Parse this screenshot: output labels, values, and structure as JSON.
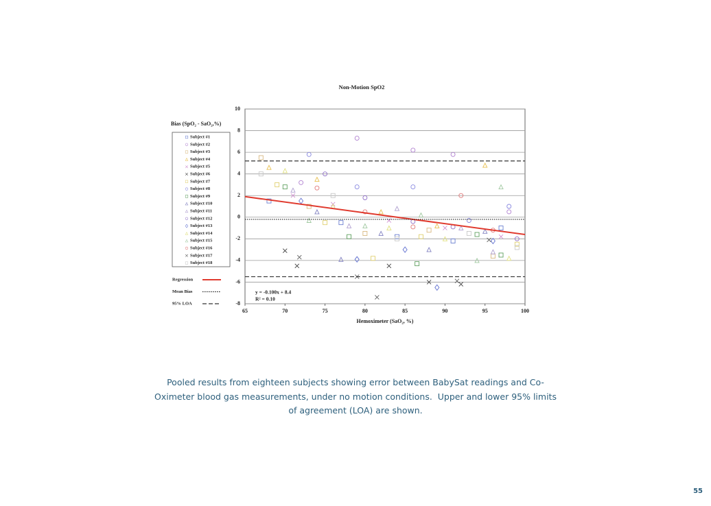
{
  "chart_data": {
    "type": "scatter",
    "title": "Non-Motion SpO2",
    "y_label": "Bias (SpO₂ - SaO₂,%)",
    "x_label": "Hemoximeter (SaO₂, %)",
    "xlim": [
      65,
      100
    ],
    "xticks": [
      65,
      70,
      75,
      80,
      85,
      90,
      95,
      100
    ],
    "ylim": [
      -8,
      10
    ],
    "yticks": [
      -8,
      -6,
      -4,
      -2,
      0,
      2,
      4,
      6,
      8,
      10
    ],
    "grid": true,
    "series": [
      {
        "name": "Subject #1",
        "color": "#6a7fd0",
        "marker": "square",
        "x": [
          68,
          77,
          84,
          91,
          97
        ],
        "y": [
          1.5,
          -0.5,
          -1.8,
          -2.2,
          -1.0
        ]
      },
      {
        "name": "Subject #2",
        "color": "#b080d0",
        "marker": "circle",
        "x": [
          72,
          79,
          86,
          91,
          98
        ],
        "y": [
          3.2,
          7.3,
          6.2,
          5.8,
          0.5
        ]
      },
      {
        "name": "Subject #3",
        "color": "#d8b880",
        "marker": "square",
        "x": [
          67,
          73,
          80,
          88,
          96
        ],
        "y": [
          5.5,
          1.0,
          -1.5,
          -1.2,
          -3.6
        ]
      },
      {
        "name": "Subject #4",
        "color": "#e8c050",
        "marker": "triangle",
        "x": [
          68,
          74,
          82,
          89,
          95
        ],
        "y": [
          4.6,
          3.5,
          0.5,
          -0.8,
          4.8
        ]
      },
      {
        "name": "Subject #5",
        "color": "#d090d0",
        "marker": "x",
        "x": [
          71,
          76,
          83,
          90,
          97
        ],
        "y": [
          2.0,
          1.2,
          -0.3,
          -1.0,
          -1.8
        ]
      },
      {
        "name": "Subject #6",
        "color": "#404040",
        "marker": "x",
        "x": [
          70,
          71.5,
          83,
          88,
          92
        ],
        "y": [
          -3.1,
          -4.5,
          -4.5,
          -6.0,
          -6.2
        ]
      },
      {
        "name": "Subject #7",
        "color": "#e0d070",
        "marker": "square",
        "x": [
          69,
          75,
          81,
          87,
          99
        ],
        "y": [
          3.0,
          -0.5,
          -3.8,
          -1.8,
          -2.5
        ]
      },
      {
        "name": "Subject #8",
        "color": "#8888e0",
        "marker": "circle",
        "x": [
          73,
          79,
          86,
          93,
          98
        ],
        "y": [
          5.8,
          2.8,
          2.8,
          -0.3,
          1.0
        ]
      },
      {
        "name": "Subject #9",
        "color": "#60a060",
        "marker": "square",
        "x": [
          70,
          78,
          86.5,
          94,
          97
        ],
        "y": [
          2.8,
          -1.8,
          -4.3,
          -1.6,
          -3.5
        ]
      },
      {
        "name": "Subject #10",
        "color": "#8080c0",
        "marker": "triangle",
        "x": [
          74,
          77,
          82,
          88,
          95
        ],
        "y": [
          0.5,
          -3.9,
          -1.5,
          -3.0,
          -1.3
        ]
      },
      {
        "name": "Subject #11",
        "color": "#b0a0d0",
        "marker": "triangle",
        "x": [
          71,
          78,
          84,
          92,
          96
        ],
        "y": [
          2.5,
          -0.8,
          0.8,
          -1.0,
          -3.2
        ]
      },
      {
        "name": "Subject #12",
        "color": "#9070c8",
        "marker": "circle",
        "x": [
          75,
          80,
          86,
          91,
          99
        ],
        "y": [
          4.0,
          1.8,
          -0.4,
          -0.9,
          -2.0
        ]
      },
      {
        "name": "Subject #13",
        "color": "#6070d0",
        "marker": "diamond",
        "x": [
          72,
          79,
          85,
          89,
          96
        ],
        "y": [
          1.5,
          -3.9,
          -3.0,
          -6.5,
          -2.2
        ]
      },
      {
        "name": "Subject #14",
        "color": "#e0e080",
        "marker": "triangle",
        "x": [
          70,
          76,
          83,
          90,
          98
        ],
        "y": [
          4.3,
          1.0,
          -1.0,
          -2.0,
          -3.8
        ]
      },
      {
        "name": "Subject #15",
        "color": "#a0c8a0",
        "marker": "triangle",
        "x": [
          73,
          80,
          87,
          94,
          97
        ],
        "y": [
          -0.3,
          -0.8,
          0.2,
          -4.0,
          2.8
        ]
      },
      {
        "name": "Subject #16",
        "color": "#e07878",
        "marker": "circle",
        "x": [
          74,
          80,
          86,
          92,
          96
        ],
        "y": [
          2.7,
          0.5,
          -0.9,
          2.0,
          -1.2
        ]
      },
      {
        "name": "Subject #17",
        "color": "#606060",
        "marker": "x",
        "x": [
          71.8,
          79,
          81.5,
          91.5,
          95.5
        ],
        "y": [
          -3.7,
          -5.5,
          -7.4,
          -5.9,
          -2.1
        ]
      },
      {
        "name": "Subject #18",
        "color": "#c8c8c8",
        "marker": "square",
        "x": [
          67,
          76,
          84,
          93,
          99
        ],
        "y": [
          4.0,
          2.0,
          -2.0,
          -1.5,
          -2.8
        ]
      }
    ],
    "lines": [
      {
        "name": "Regression",
        "color": "#e03a2e",
        "style": "solid",
        "slope": -0.1,
        "intercept": 8.4
      },
      {
        "name": "Mean Bias",
        "color": "#222222",
        "style": "dotted",
        "y": [
          -0.2
        ]
      },
      {
        "name": "95% LOA",
        "color": "#333333",
        "style": "dashed",
        "y": [
          5.2,
          -5.5
        ]
      }
    ],
    "annotations": [
      "y = -0.100x + 8.4",
      "R² = 0.10"
    ]
  },
  "caption": [
    "Pooled results from eighteen subjects showing error between BabySat readings and Co-",
    "Oximeter blood gas measurements, under no motion conditions.  Upper and lower 95% limits",
    "of agreement (LOA) are shown."
  ],
  "page_number": "55"
}
